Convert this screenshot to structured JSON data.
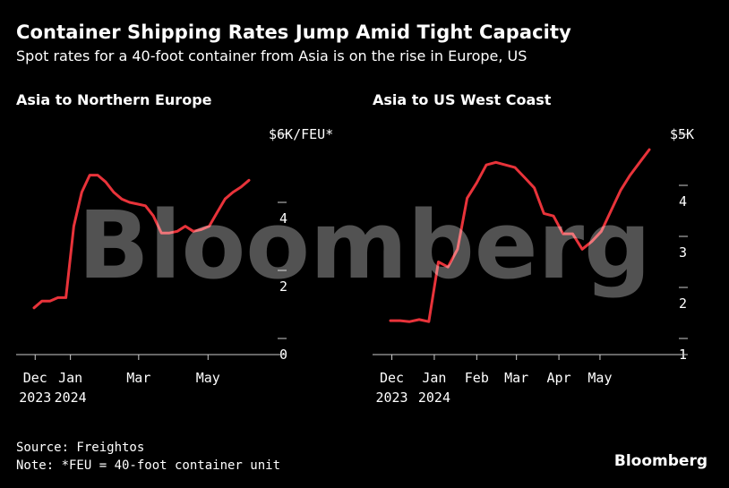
{
  "header": {
    "title": "Container Shipping Rates Jump Amid Tight Capacity",
    "subtitle": "Spot rates for a 40-foot container from Asia is on the rise in Europe, US"
  },
  "footer": {
    "source": "Source: Freightos",
    "note": "Note: *FEU = 40-foot container unit",
    "brand": "Bloomberg"
  },
  "watermark": "Bloomberg",
  "colors": {
    "line": "#e8333a",
    "background": "#000000",
    "text": "#ffffff",
    "tick": "#cccccc"
  },
  "chart_data": [
    {
      "type": "line",
      "title": "Asia to Northern Europe",
      "unit_label": "$6K/FEU*",
      "ylim": [
        0,
        6
      ],
      "y_ticks": [
        0,
        2,
        4,
        6
      ],
      "y_tick_labels": [
        "0",
        "2",
        "4",
        ""
      ],
      "x_ticks": [
        {
          "date": "2023-12-01",
          "line1": "Dec",
          "line2": "2023"
        },
        {
          "date": "2024-01-01",
          "line1": "Jan",
          "line2": "2024"
        },
        {
          "date": "2024-03-01",
          "line1": "Mar",
          "line2": ""
        },
        {
          "date": "2024-05-01",
          "line1": "May",
          "line2": ""
        }
      ],
      "xlim": [
        "2023-11-25",
        "2024-06-15"
      ],
      "series": [
        {
          "x": [
            "2023-11-30",
            "2023-12-07",
            "2023-12-14",
            "2023-12-21",
            "2023-12-28",
            "2024-01-04",
            "2024-01-11",
            "2024-01-18",
            "2024-01-25",
            "2024-02-01",
            "2024-02-08",
            "2024-02-15",
            "2024-02-22",
            "2024-02-29",
            "2024-03-07",
            "2024-03-14",
            "2024-03-21",
            "2024-03-28",
            "2024-04-04",
            "2024-04-11",
            "2024-04-18",
            "2024-04-25",
            "2024-05-02",
            "2024-05-09",
            "2024-05-16",
            "2024-05-23",
            "2024-05-30",
            "2024-06-06"
          ],
          "values": [
            0.9,
            1.1,
            1.1,
            1.2,
            1.2,
            3.3,
            4.3,
            4.8,
            4.8,
            4.6,
            4.3,
            4.1,
            4.0,
            3.95,
            3.9,
            3.6,
            3.1,
            3.1,
            3.15,
            3.3,
            3.15,
            3.2,
            3.3,
            3.7,
            4.1,
            4.3,
            4.45,
            4.65
          ]
        }
      ]
    },
    {
      "type": "line",
      "title": "Asia to US West Coast",
      "unit_label": "$5K",
      "ylim": [
        1,
        5
      ],
      "y_ticks": [
        1,
        2,
        3,
        4,
        5
      ],
      "y_tick_labels": [
        "1",
        "2",
        "3",
        "4",
        ""
      ],
      "x_ticks": [
        {
          "date": "2023-12-01",
          "line1": "Dec",
          "line2": "2023"
        },
        {
          "date": "2024-01-01",
          "line1": "Jan",
          "line2": "2024"
        },
        {
          "date": "2024-02-01",
          "line1": "Feb",
          "line2": ""
        },
        {
          "date": "2024-03-01",
          "line1": "Mar",
          "line2": ""
        },
        {
          "date": "2024-04-01",
          "line1": "Apr",
          "line2": ""
        },
        {
          "date": "2024-05-01",
          "line1": "May",
          "line2": ""
        }
      ],
      "xlim": [
        "2023-11-22",
        "2024-06-20"
      ],
      "series": [
        {
          "x": [
            "2023-11-30",
            "2023-12-07",
            "2023-12-14",
            "2023-12-21",
            "2023-12-28",
            "2024-01-04",
            "2024-01-11",
            "2024-01-18",
            "2024-01-25",
            "2024-02-01",
            "2024-02-08",
            "2024-02-15",
            "2024-02-22",
            "2024-02-29",
            "2024-03-07",
            "2024-03-14",
            "2024-03-21",
            "2024-03-28",
            "2024-04-04",
            "2024-04-11",
            "2024-04-18",
            "2024-04-25",
            "2024-05-02",
            "2024-05-09",
            "2024-05-16",
            "2024-05-23",
            "2024-05-30",
            "2024-06-06"
          ],
          "values": [
            1.35,
            1.35,
            1.33,
            1.37,
            1.33,
            2.5,
            2.4,
            2.75,
            3.75,
            4.05,
            4.4,
            4.45,
            4.4,
            4.35,
            4.15,
            3.95,
            3.45,
            3.4,
            3.05,
            3.05,
            2.75,
            2.9,
            3.1,
            3.5,
            3.9,
            4.2,
            4.45,
            4.7
          ]
        }
      ]
    }
  ]
}
